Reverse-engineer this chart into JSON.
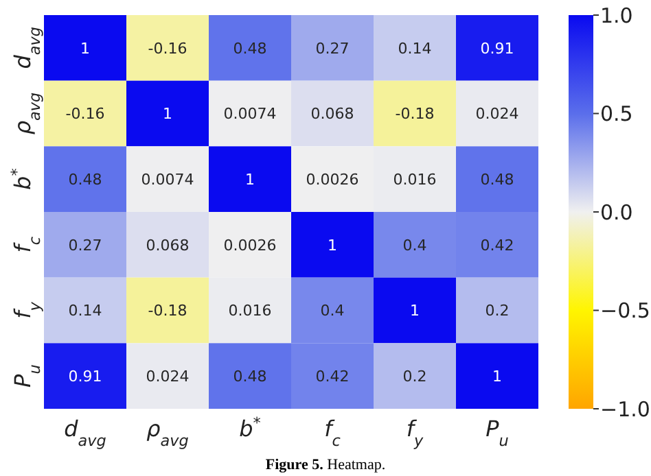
{
  "chart_data": {
    "type": "heatmap",
    "categories": [
      "d$_{avg}$",
      "ρ$_{avg}$",
      "b$^{*}$",
      "f$_{c}$",
      "f$_{y}$",
      "P$_{u}$"
    ],
    "y_categories": [
      "d$_{avg}$",
      "ρ$_{avg}$",
      "b$^{*}$",
      "f$_{c}$",
      "f$_{y}$",
      "P$_{u}$"
    ],
    "cells": [
      [
        1,
        -0.16,
        0.48,
        0.27,
        0.14,
        0.91
      ],
      [
        -0.16,
        1,
        0.0074,
        0.068,
        -0.18,
        0.024
      ],
      [
        0.48,
        0.0074,
        1,
        0.0026,
        0.016,
        0.48
      ],
      [
        0.27,
        0.068,
        0.0026,
        1,
        0.4,
        0.42
      ],
      [
        0.14,
        -0.18,
        0.016,
        0.4,
        1,
        0.2
      ],
      [
        0.91,
        0.024,
        0.48,
        0.42,
        0.2,
        1
      ]
    ],
    "data_labels": true,
    "clim": [
      -1,
      1
    ],
    "cticks": [
      {
        "value": 1,
        "label": "1.0"
      },
      {
        "value": 0.5,
        "label": "0.5"
      },
      {
        "value": 0,
        "label": "0.0"
      },
      {
        "value": -0.5,
        "label": "−0.5"
      },
      {
        "value": -1,
        "label": "−1.0"
      }
    ],
    "annotations": [
      "Figure 5. Heatmap."
    ]
  }
}
